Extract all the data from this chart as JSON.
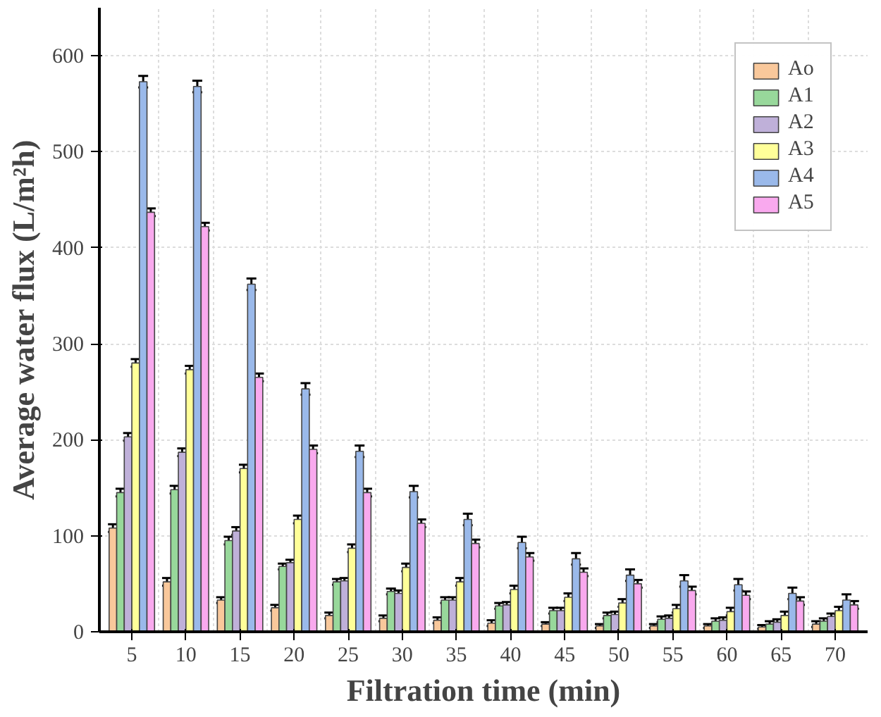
{
  "chart_data": {
    "type": "bar",
    "xlabel": "Filtration time (min)",
    "ylabel": "Average water flux (L/m²h)",
    "categories": [
      "5",
      "10",
      "15",
      "20",
      "25",
      "30",
      "35",
      "40",
      "45",
      "50",
      "55",
      "60",
      "65",
      "70"
    ],
    "ylim": [
      0,
      650
    ],
    "yticks": [
      0,
      100,
      200,
      300,
      400,
      500,
      600
    ],
    "grid": true,
    "legend": "top right",
    "series": [
      {
        "name": "Ao",
        "color": "#f9c89b",
        "values": [
          108,
          52,
          33,
          25,
          17,
          14,
          12,
          9,
          8,
          6,
          6,
          6,
          5,
          8
        ],
        "errors": [
          4,
          4,
          3,
          3,
          3,
          3,
          3,
          3,
          2,
          2,
          2,
          2,
          2,
          3
        ]
      },
      {
        "name": "A1",
        "color": "#98d89b",
        "values": [
          145,
          148,
          95,
          68,
          52,
          42,
          33,
          27,
          22,
          17,
          13,
          11,
          8,
          11
        ],
        "errors": [
          4,
          4,
          4,
          3,
          3,
          3,
          3,
          3,
          3,
          3,
          3,
          3,
          3,
          3
        ]
      },
      {
        "name": "A2",
        "color": "#bfb0d9",
        "values": [
          203,
          187,
          105,
          72,
          53,
          40,
          33,
          28,
          22,
          18,
          14,
          12,
          10,
          16
        ],
        "errors": [
          4,
          4,
          4,
          3,
          3,
          3,
          3,
          3,
          3,
          3,
          3,
          3,
          3,
          3
        ]
      },
      {
        "name": "A3",
        "color": "#ffff99",
        "values": [
          280,
          273,
          170,
          117,
          87,
          67,
          52,
          44,
          36,
          30,
          24,
          21,
          17,
          22
        ],
        "errors": [
          4,
          4,
          4,
          4,
          4,
          4,
          4,
          4,
          4,
          4,
          4,
          4,
          4,
          4
        ]
      },
      {
        "name": "A4",
        "color": "#9ab9ea",
        "values": [
          573,
          568,
          362,
          253,
          188,
          146,
          117,
          93,
          76,
          59,
          53,
          49,
          40,
          33
        ],
        "errors": [
          6,
          6,
          6,
          6,
          6,
          6,
          6,
          6,
          6,
          6,
          6,
          6,
          6,
          6
        ]
      },
      {
        "name": "A5",
        "color": "#f9a9ee",
        "values": [
          437,
          422,
          265,
          190,
          145,
          113,
          92,
          78,
          62,
          50,
          43,
          38,
          32,
          28
        ],
        "errors": [
          4,
          4,
          4,
          4,
          4,
          4,
          4,
          4,
          4,
          4,
          4,
          4,
          4,
          4
        ]
      }
    ]
  }
}
